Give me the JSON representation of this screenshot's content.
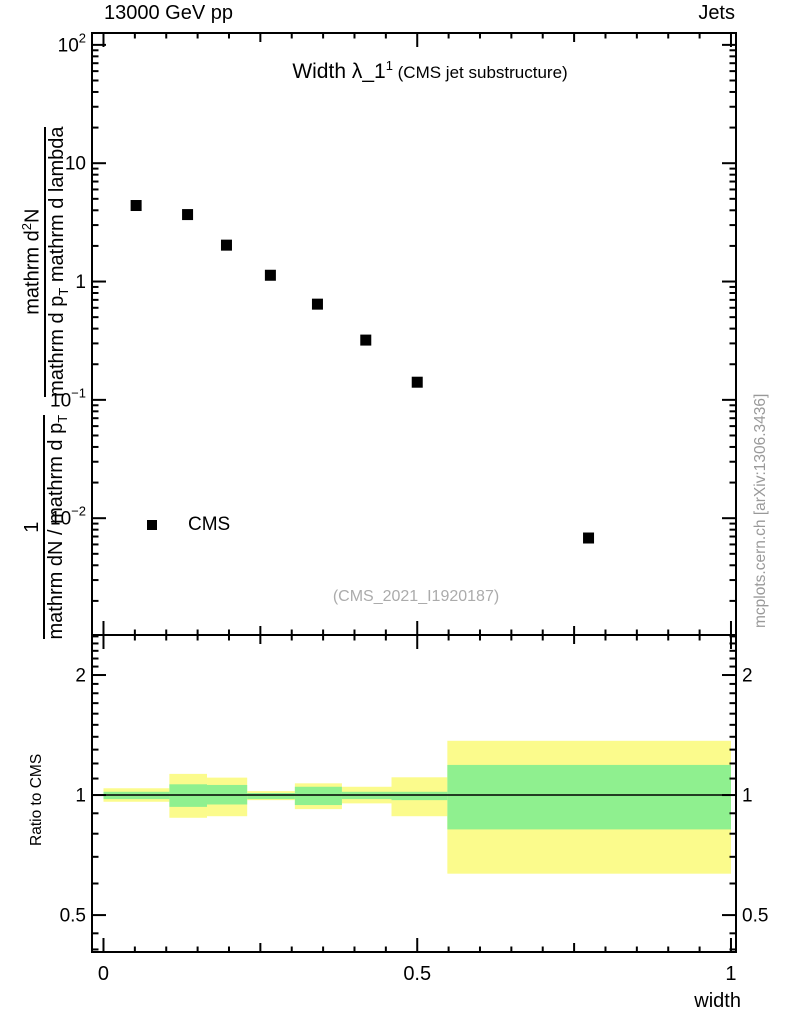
{
  "chart_data": {
    "type": "scatter",
    "header_left": "13000 GeV pp",
    "header_right": "Jets",
    "title": {
      "main": "Width λ_1",
      "sup": "1",
      "paren": " (CMS jet substructure)"
    },
    "watermark": "(CMS_2021_I1920187)",
    "side_caption": "mcplots.cern.ch [arXiv:1306.3436]",
    "xlabel": "width",
    "ratio_ylabel": "Ratio to CMS",
    "legend": {
      "label": "CMS"
    },
    "ylabel": {
      "frac1": {
        "num": "1",
        "den_main": "mathrm dN / mathrm d p",
        "den_sub": "T"
      },
      "frac2": {
        "num_main": "mathrm d",
        "num_sup": "2",
        "num_tail": "N",
        "den_main": "mathrm d p",
        "den_sub": "T",
        "den_tail": " mathrm d lambda"
      }
    },
    "main_panel": {
      "yscale": "log",
      "ylim": [
        0.00103,
        126
      ],
      "xlim": [
        -0.0183,
        1.008
      ],
      "yticks": [
        {
          "v": 100,
          "base": "10",
          "sup": "2"
        },
        {
          "v": 10,
          "base": "10",
          "sup": ""
        },
        {
          "v": 1,
          "base": "1",
          "sup": ""
        },
        {
          "v": 0.1,
          "base": "10",
          "sup": "−1"
        },
        {
          "v": 0.01,
          "base": "10",
          "sup": "−2"
        }
      ],
      "series": [
        {
          "name": "CMS",
          "marker": "square",
          "color": "#000000",
          "x": [
            0.052,
            0.134,
            0.196,
            0.266,
            0.341,
            0.418,
            0.5,
            0.773
          ],
          "y": [
            4.39,
            3.68,
            2.03,
            1.13,
            0.644,
            0.32,
            0.141,
            0.0068
          ]
        }
      ]
    },
    "ratio_panel": {
      "yscale": "log",
      "ylim": [
        0.404,
        2.52
      ],
      "line_y": 1,
      "yticks": [
        {
          "v": 2,
          "label": "2"
        },
        {
          "v": 1,
          "label": "1"
        },
        {
          "v": 0.5,
          "label": "0.5"
        }
      ],
      "minor_ticks": [
        0.41,
        0.45,
        0.6,
        0.7,
        0.8,
        0.9,
        1.1,
        1.2,
        1.3,
        1.4,
        1.5,
        1.6,
        1.7,
        1.8,
        1.9,
        2.1,
        2.2,
        2.3,
        2.4,
        2.5
      ],
      "colors": {
        "yellow": "#fbfb8c",
        "green": "#8ff08f"
      },
      "bands": [
        {
          "x0": 0.0,
          "x1": 0.105,
          "yellow": [
            0.962,
            1.04
          ],
          "green": [
            0.977,
            1.019
          ]
        },
        {
          "x0": 0.105,
          "x1": 0.165,
          "yellow": [
            0.877,
            1.13
          ],
          "green": [
            0.934,
            1.064
          ]
        },
        {
          "x0": 0.165,
          "x1": 0.229,
          "yellow": [
            0.885,
            1.106
          ],
          "green": [
            0.947,
            1.06
          ]
        },
        {
          "x0": 0.229,
          "x1": 0.305,
          "yellow": [
            0.971,
            1.023
          ],
          "green": [
            0.977,
            1.012
          ]
        },
        {
          "x0": 0.305,
          "x1": 0.38,
          "yellow": [
            0.922,
            1.07
          ],
          "green": [
            0.944,
            1.049
          ]
        },
        {
          "x0": 0.38,
          "x1": 0.459,
          "yellow": [
            0.953,
            1.049
          ],
          "green": [
            0.977,
            1.019
          ]
        },
        {
          "x0": 0.459,
          "x1": 0.548,
          "yellow": [
            0.885,
            1.108
          ],
          "green": [
            0.971,
            1.019
          ]
        },
        {
          "x0": 0.548,
          "x1": 1.0,
          "yellow": [
            0.635,
            1.368
          ],
          "green": [
            0.82,
            1.19
          ]
        }
      ]
    },
    "x_axis": {
      "ticks": [
        {
          "v": 0,
          "label": "0"
        },
        {
          "v": 0.5,
          "label": "0.5"
        },
        {
          "v": 1,
          "label": "1"
        }
      ],
      "medium": [
        0.25,
        0.75
      ],
      "minor_step": 0.05
    }
  }
}
